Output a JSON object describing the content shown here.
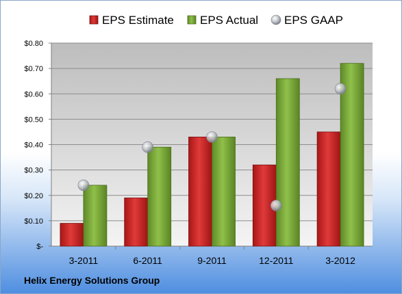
{
  "company_name": "Helix Energy Solutions Group",
  "colors": {
    "estimate": "#d42a2a",
    "actual": "#7fae3a",
    "gaap": "#a8acb4"
  },
  "chart_data": {
    "type": "bar",
    "categories": [
      "3-2011",
      "6-2011",
      "9-2011",
      "12-2011",
      "3-2012"
    ],
    "series": [
      {
        "name": "EPS Estimate",
        "kind": "bar",
        "values": [
          0.09,
          0.19,
          0.43,
          0.32,
          0.45
        ]
      },
      {
        "name": "EPS Actual",
        "kind": "bar",
        "values": [
          0.24,
          0.39,
          0.43,
          0.66,
          0.72
        ]
      },
      {
        "name": "EPS GAAP",
        "kind": "marker",
        "values": [
          0.24,
          0.39,
          0.43,
          0.16,
          0.62
        ]
      }
    ],
    "yticks": [
      {
        "value": 0,
        "label": "$-"
      },
      {
        "value": 0.1,
        "label": "$0.10"
      },
      {
        "value": 0.2,
        "label": "$0.20"
      },
      {
        "value": 0.3,
        "label": "$0.30"
      },
      {
        "value": 0.4,
        "label": "$0.40"
      },
      {
        "value": 0.5,
        "label": "$0.50"
      },
      {
        "value": 0.6,
        "label": "$0.60"
      },
      {
        "value": 0.7,
        "label": "$0.70"
      },
      {
        "value": 0.8,
        "label": "$0.80"
      }
    ],
    "ylim": [
      0,
      0.8
    ],
    "grid": true,
    "legend_position": "top"
  }
}
